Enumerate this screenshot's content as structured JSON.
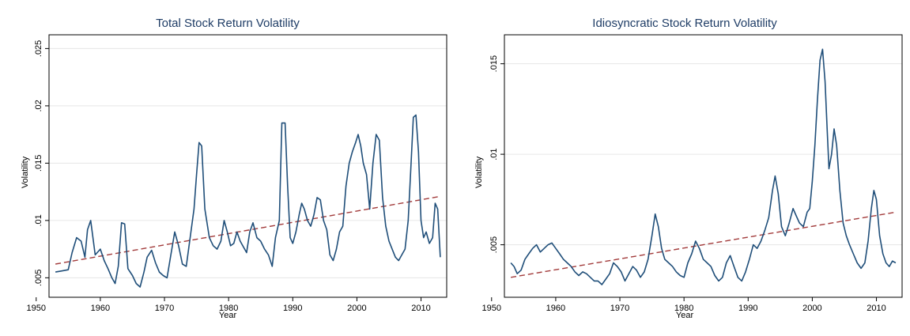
{
  "colors": {
    "series": "#1f4e79",
    "fit": "#a23b3b",
    "grid": "#e6e6e6",
    "frame": "#000000",
    "title": "#1f3d66"
  },
  "chart_data": [
    {
      "type": "line",
      "title": "Total Stock Return Volatility",
      "xlabel": "Year",
      "ylabel": "Volatility",
      "xlim": [
        1952.0,
        2014.0
      ],
      "ylim": [
        0.0033,
        0.0262
      ],
      "xticks": [
        1950,
        1960,
        1970,
        1980,
        1990,
        2000,
        2010
      ],
      "xtick_labels": [
        "1950",
        "1960",
        "1970",
        "1980",
        "1990",
        "2000",
        "2010"
      ],
      "yticks": [
        0.005,
        0.01,
        0.015,
        0.02,
        0.025
      ],
      "ytick_labels": [
        ".005",
        ".01",
        ".015",
        ".02",
        ".025"
      ],
      "grid": true,
      "series": [
        {
          "style": "solid",
          "x": [
            1953.0,
            1954.0,
            1955.0,
            1955.6,
            1956.3,
            1957.0,
            1957.6,
            1958.0,
            1958.5,
            1959.2,
            1960.0,
            1960.6,
            1961.2,
            1961.8,
            1962.3,
            1962.8,
            1963.3,
            1963.8,
            1964.3,
            1965.0,
            1965.6,
            1966.2,
            1966.8,
            1967.3,
            1968.0,
            1968.6,
            1969.2,
            1969.8,
            1970.4,
            1971.0,
            1971.6,
            1972.2,
            1972.8,
            1973.4,
            1974.0,
            1974.6,
            1975.0,
            1975.4,
            1975.8,
            1976.3,
            1977.0,
            1977.6,
            1978.2,
            1978.8,
            1979.3,
            1979.8,
            1980.3,
            1980.8,
            1981.3,
            1981.8,
            1982.3,
            1982.8,
            1983.3,
            1983.8,
            1984.4,
            1985.0,
            1985.6,
            1986.2,
            1986.8,
            1987.3,
            1987.9,
            1988.3,
            1988.8,
            1989.2,
            1989.6,
            1990.0,
            1990.5,
            1991.0,
            1991.4,
            1991.8,
            1992.3,
            1992.8,
            1993.3,
            1993.8,
            1994.3,
            1994.8,
            1995.3,
            1995.8,
            1996.3,
            1996.8,
            1997.3,
            1997.8,
            1998.3,
            1998.8,
            1999.3,
            1999.8,
            2000.2,
            2000.6,
            2001.0,
            2001.5,
            2002.0,
            2002.5,
            2003.0,
            2003.5,
            2004.0,
            2004.5,
            2005.0,
            2005.5,
            2006.0,
            2006.5,
            2007.0,
            2007.5,
            2008.0,
            2008.4,
            2008.8,
            2009.2,
            2009.6,
            2010.0,
            2010.4,
            2010.8,
            2011.3,
            2011.8,
            2012.2,
            2012.6,
            2013.0
          ],
          "y": [
            0.0055,
            0.0056,
            0.0057,
            0.0072,
            0.0085,
            0.0082,
            0.0068,
            0.0092,
            0.01,
            0.007,
            0.0075,
            0.0065,
            0.0058,
            0.005,
            0.0045,
            0.006,
            0.0098,
            0.0097,
            0.0058,
            0.0052,
            0.0045,
            0.0042,
            0.0055,
            0.0068,
            0.0074,
            0.0063,
            0.0055,
            0.0052,
            0.005,
            0.007,
            0.009,
            0.0078,
            0.0062,
            0.006,
            0.0085,
            0.011,
            0.014,
            0.0168,
            0.0165,
            0.011,
            0.0085,
            0.0078,
            0.0075,
            0.0082,
            0.01,
            0.009,
            0.0078,
            0.008,
            0.009,
            0.0082,
            0.0077,
            0.0072,
            0.009,
            0.0098,
            0.0085,
            0.0082,
            0.0075,
            0.007,
            0.006,
            0.0085,
            0.01,
            0.0185,
            0.0185,
            0.013,
            0.0085,
            0.008,
            0.009,
            0.0105,
            0.0115,
            0.011,
            0.01,
            0.0095,
            0.0105,
            0.012,
            0.0118,
            0.01,
            0.0092,
            0.007,
            0.0065,
            0.0075,
            0.009,
            0.0095,
            0.013,
            0.015,
            0.016,
            0.0168,
            0.0175,
            0.0165,
            0.015,
            0.014,
            0.011,
            0.015,
            0.0175,
            0.017,
            0.012,
            0.0095,
            0.0082,
            0.0075,
            0.0068,
            0.0065,
            0.007,
            0.0075,
            0.01,
            0.0145,
            0.019,
            0.0192,
            0.016,
            0.01,
            0.0085,
            0.009,
            0.008,
            0.0085,
            0.0115,
            0.011,
            0.0068
          ]
        },
        {
          "style": "dashed",
          "x": [
            1953.0,
            2013.0
          ],
          "y": [
            0.0062,
            0.0121
          ]
        }
      ]
    },
    {
      "type": "line",
      "title": "Idiosyncratic Stock Return Volatility",
      "xlabel": "Year",
      "ylabel": "Volatility",
      "xlim": [
        1952.0,
        2014.0
      ],
      "ylim": [
        0.0021,
        0.0166
      ],
      "xticks": [
        1950,
        1960,
        1970,
        1980,
        1990,
        2000,
        2010
      ],
      "xtick_labels": [
        "1950",
        "1960",
        "1970",
        "1980",
        "1990",
        "2000",
        "2010"
      ],
      "yticks": [
        0.005,
        0.01,
        0.015
      ],
      "ytick_labels": [
        ".005",
        ".01",
        ".015"
      ],
      "grid": true,
      "series": [
        {
          "style": "solid",
          "x": [
            1953.0,
            1953.5,
            1954.0,
            1954.6,
            1955.2,
            1955.8,
            1956.4,
            1957.0,
            1957.6,
            1958.2,
            1958.8,
            1959.4,
            1960.0,
            1960.6,
            1961.2,
            1961.8,
            1962.4,
            1963.0,
            1963.6,
            1964.2,
            1964.8,
            1965.4,
            1966.0,
            1966.6,
            1967.2,
            1967.8,
            1968.4,
            1969.0,
            1969.6,
            1970.2,
            1970.8,
            1971.4,
            1972.0,
            1972.6,
            1973.2,
            1973.8,
            1974.4,
            1975.0,
            1975.5,
            1976.0,
            1976.5,
            1977.0,
            1977.6,
            1978.2,
            1978.8,
            1979.4,
            1980.0,
            1980.6,
            1981.2,
            1981.8,
            1982.4,
            1983.0,
            1983.6,
            1984.2,
            1984.8,
            1985.4,
            1986.0,
            1986.6,
            1987.2,
            1987.8,
            1988.4,
            1989.0,
            1989.6,
            1990.2,
            1990.8,
            1991.4,
            1992.0,
            1992.6,
            1993.2,
            1993.8,
            1994.2,
            1994.7,
            1995.2,
            1995.8,
            1996.4,
            1997.0,
            1997.5,
            1998.0,
            1998.6,
            1999.2,
            1999.6,
            2000.0,
            2000.4,
            2000.8,
            2001.2,
            2001.6,
            2002.0,
            2002.3,
            2002.6,
            2003.0,
            2003.4,
            2003.8,
            2004.3,
            2004.8,
            2005.3,
            2005.8,
            2006.4,
            2007.0,
            2007.6,
            2008.2,
            2008.7,
            2009.2,
            2009.6,
            2010.0,
            2010.5,
            2011.0,
            2011.5,
            2012.0,
            2012.5,
            2013.0
          ],
          "y": [
            0.004,
            0.0038,
            0.0034,
            0.0036,
            0.0042,
            0.0045,
            0.0048,
            0.005,
            0.0046,
            0.0048,
            0.005,
            0.0051,
            0.0048,
            0.0045,
            0.0042,
            0.004,
            0.0038,
            0.0035,
            0.0033,
            0.0035,
            0.0034,
            0.0032,
            0.003,
            0.003,
            0.0028,
            0.0031,
            0.0034,
            0.004,
            0.0038,
            0.0035,
            0.003,
            0.0034,
            0.0038,
            0.0036,
            0.0032,
            0.0035,
            0.0042,
            0.0055,
            0.0067,
            0.006,
            0.0048,
            0.0042,
            0.004,
            0.0038,
            0.0035,
            0.0033,
            0.0032,
            0.004,
            0.0045,
            0.0052,
            0.0048,
            0.0042,
            0.004,
            0.0038,
            0.0033,
            0.003,
            0.0032,
            0.004,
            0.0044,
            0.0038,
            0.0032,
            0.003,
            0.0035,
            0.0042,
            0.005,
            0.0048,
            0.0052,
            0.0058,
            0.0065,
            0.008,
            0.0088,
            0.0078,
            0.006,
            0.0055,
            0.0062,
            0.007,
            0.0066,
            0.0062,
            0.006,
            0.0068,
            0.007,
            0.0085,
            0.0105,
            0.013,
            0.0152,
            0.0158,
            0.014,
            0.0115,
            0.0092,
            0.01,
            0.0114,
            0.0105,
            0.008,
            0.0062,
            0.0055,
            0.005,
            0.0045,
            0.004,
            0.0037,
            0.004,
            0.0052,
            0.007,
            0.008,
            0.0075,
            0.0055,
            0.0045,
            0.004,
            0.0038,
            0.0041,
            0.004
          ]
        },
        {
          "style": "dashed",
          "x": [
            1953.0,
            2013.0
          ],
          "y": [
            0.0032,
            0.0068
          ]
        }
      ]
    }
  ]
}
